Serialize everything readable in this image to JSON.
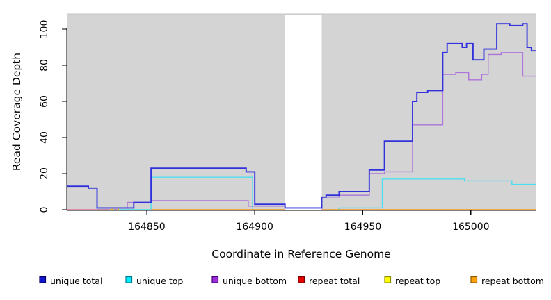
{
  "chart_data": {
    "type": "step-line",
    "title": "",
    "x_label": "Coordinate in Reference Genome",
    "y_label": "Read Coverage Depth",
    "x_range": [
      164813,
      165030
    ],
    "y_range": [
      0,
      108
    ],
    "x_tick_labels": [
      "164850",
      "164900",
      "164950",
      "165000"
    ],
    "x_tick_values": [
      164850,
      164900,
      164950,
      165000
    ],
    "y_tick_labels": [
      "0",
      "20",
      "40",
      "60",
      "80",
      "100"
    ],
    "y_tick_values": [
      0,
      20,
      40,
      60,
      80,
      100
    ],
    "grid": "off",
    "panel_background": "#D4D4D4",
    "masked_gap": {
      "from": 164914,
      "to": 164931
    },
    "series": [
      {
        "name": "unique top",
        "color": "#4ADEF0",
        "width": 1.4,
        "above_gap": false,
        "points": [
          [
            164813,
            13
          ],
          [
            164823,
            12
          ],
          [
            164827,
            0
          ],
          [
            164852,
            18
          ],
          [
            164899,
            0
          ],
          [
            164939,
            1
          ],
          [
            164959,
            17
          ],
          [
            164997,
            16
          ],
          [
            165019,
            14
          ],
          [
            165030,
            14
          ]
        ]
      },
      {
        "name": "repeat total",
        "color": "#E8608A",
        "width": 1.2,
        "above_gap": false,
        "points": [
          [
            164813,
            0
          ],
          [
            164837,
            0
          ]
        ]
      },
      {
        "name": "repeat top",
        "color": "#F0D800",
        "width": 1.2,
        "above_gap": false,
        "points": [
          [
            164833,
            0
          ],
          [
            164834,
            1
          ],
          [
            164836,
            1
          ],
          [
            164837,
            0
          ]
        ]
      },
      {
        "name": "repeat bottom",
        "color": "#FF9714",
        "width": 1.5,
        "above_gap": false,
        "points": [
          [
            164852,
            0
          ],
          [
            165030,
            0
          ]
        ]
      },
      {
        "name": "unique bottom",
        "color": "#AC74D8",
        "width": 1.4,
        "above_gap": false,
        "points": [
          [
            164829,
            1
          ],
          [
            164841,
            4
          ],
          [
            164852,
            5
          ],
          [
            164897,
            2
          ],
          [
            164914,
            0
          ],
          [
            164931,
            7
          ],
          [
            164939,
            8
          ],
          [
            164953,
            20
          ],
          [
            164960,
            21
          ],
          [
            164973,
            47
          ],
          [
            164987,
            75
          ],
          [
            164993,
            76
          ],
          [
            164999,
            72
          ],
          [
            165005,
            75
          ],
          [
            165008,
            86
          ],
          [
            165014,
            87
          ],
          [
            165024,
            74
          ],
          [
            165030,
            74
          ]
        ]
      },
      {
        "name": "unique total",
        "color": "#3232DC",
        "width": 1.9,
        "above_gap": true,
        "points": [
          [
            164813,
            13
          ],
          [
            164823,
            12
          ],
          [
            164827,
            1
          ],
          [
            164844,
            4
          ],
          [
            164852,
            23
          ],
          [
            164896,
            21
          ],
          [
            164900,
            3
          ],
          [
            164914,
            1
          ],
          [
            164931,
            7
          ],
          [
            164933,
            8
          ],
          [
            164939,
            10
          ],
          [
            164953,
            22
          ],
          [
            164960,
            38
          ],
          [
            164973,
            60
          ],
          [
            164975,
            65
          ],
          [
            164980,
            66
          ],
          [
            164987,
            87
          ],
          [
            164989,
            92
          ],
          [
            164996,
            90
          ],
          [
            164998,
            92
          ],
          [
            165001,
            83
          ],
          [
            165006,
            89
          ],
          [
            165012,
            103
          ],
          [
            165018,
            102
          ],
          [
            165024,
            103
          ],
          [
            165026,
            90
          ],
          [
            165028,
            88
          ],
          [
            165030,
            88
          ]
        ]
      }
    ],
    "legend": {
      "position": "bottom",
      "items": [
        {
          "label": "unique total",
          "fill": "#1414CC",
          "border": "#000066"
        },
        {
          "label": "unique top",
          "fill": "#00EEFF",
          "border": "#007A8C"
        },
        {
          "label": "unique bottom",
          "fill": "#9A2FD4",
          "border": "#4B0082"
        },
        {
          "label": "repeat total",
          "fill": "#E60000",
          "border": "#7A0000"
        },
        {
          "label": "repeat top",
          "fill": "#FFFF00",
          "border": "#8C8C00"
        },
        {
          "label": "repeat bottom",
          "fill": "#FFA10A",
          "border": "#8C5A00"
        }
      ]
    }
  }
}
